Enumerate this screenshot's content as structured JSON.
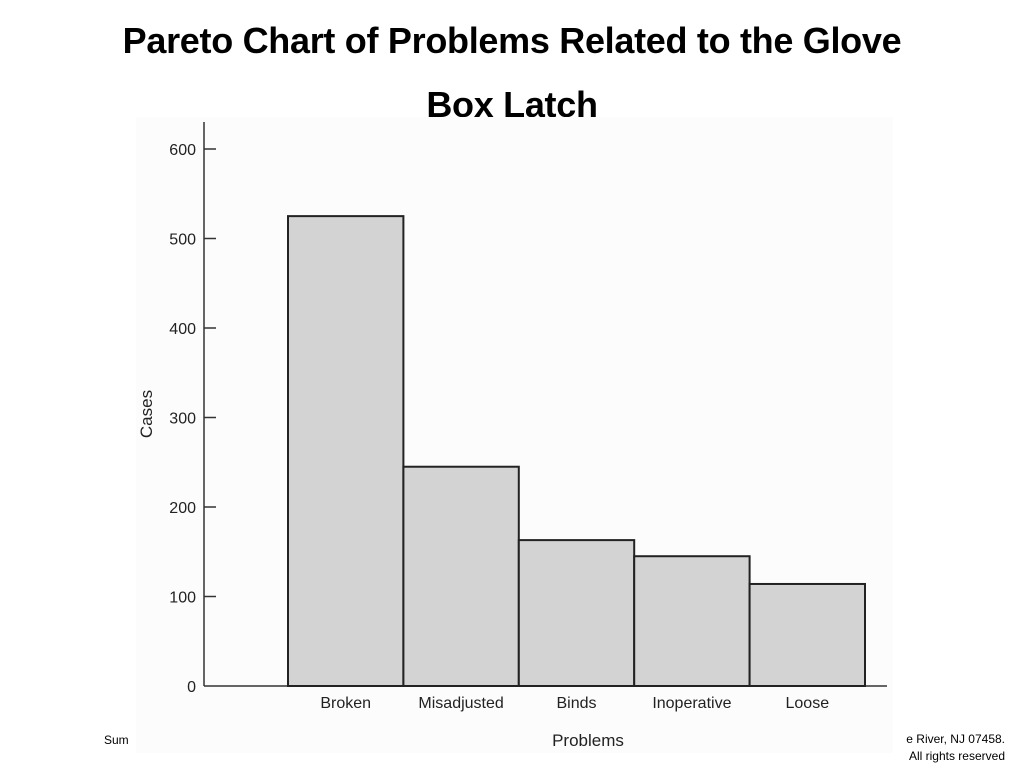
{
  "slide": {
    "title_line1": "Pareto Chart of Problems Related to the Glove",
    "title_line2": "Box Latch",
    "footer_left": "Sum",
    "footer_right_line1": "e River, NJ 07458.",
    "footer_right_line2": "All rights reserved"
  },
  "chart_data": {
    "type": "bar",
    "title": "Pareto Chart of Problems Related to the Glove Box Latch",
    "xlabel": "Problems",
    "ylabel": "Cases",
    "categories": [
      "Broken",
      "Misadjusted",
      "Binds",
      "Inoperative",
      "Loose"
    ],
    "values": [
      525,
      245,
      163,
      145,
      114
    ],
    "ylim": [
      0,
      630
    ],
    "yticks": [
      0,
      100,
      200,
      300,
      400,
      500,
      600
    ],
    "grid": false,
    "bar_color": "#d3d3d3",
    "bar_edge_color": "#222222"
  }
}
